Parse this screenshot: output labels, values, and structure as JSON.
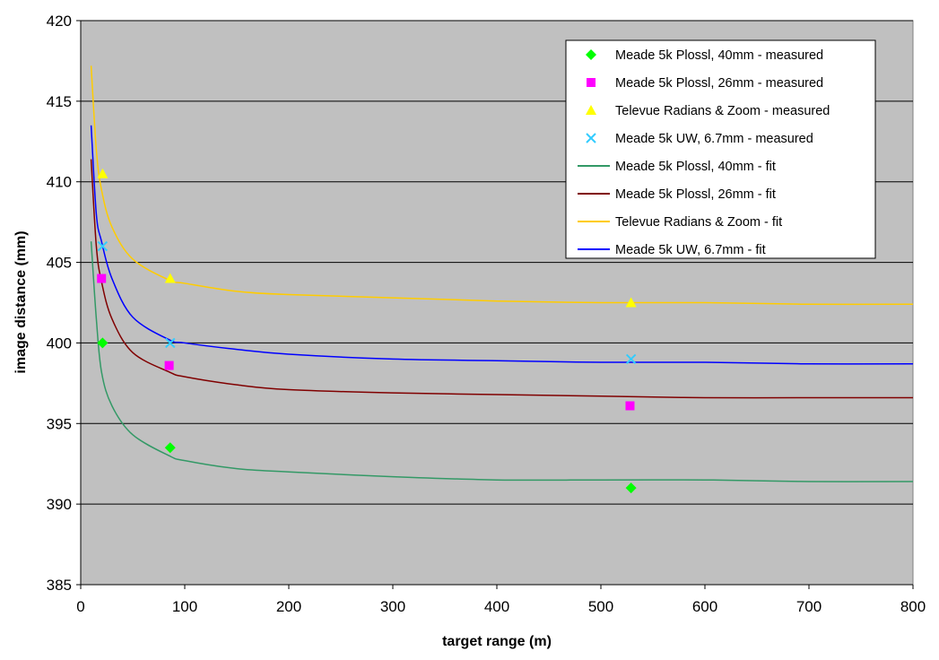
{
  "chart_data": {
    "type": "scatter",
    "title": "",
    "xlabel": "target range (m)",
    "ylabel": "image distance (mm)",
    "xlim": [
      0,
      800
    ],
    "ylim": [
      385,
      420
    ],
    "xticks": [
      "0",
      "100",
      "200",
      "300",
      "400",
      "500",
      "600",
      "700",
      "800"
    ],
    "yticks": [
      "385",
      "390",
      "395",
      "400",
      "405",
      "410",
      "415",
      "420"
    ],
    "grid": "horizontal",
    "legend_position": "top-right",
    "plot_background": "#C0C0C0",
    "series": [
      {
        "name": "Meade 5k Plossl, 40mm - measured",
        "kind": "markers",
        "marker": "diamond",
        "color": "#00FF00",
        "x": [
          21,
          86,
          529
        ],
        "y": [
          400,
          393.5,
          391
        ]
      },
      {
        "name": "Meade 5k Plossl, 26mm - measured",
        "kind": "markers",
        "marker": "square",
        "color": "#FF00FF",
        "x": [
          20,
          85,
          528
        ],
        "y": [
          404,
          398.6,
          396.1
        ]
      },
      {
        "name": "Televue Radians & Zoom - measured",
        "kind": "markers",
        "marker": "triangle",
        "color": "#FFFF00",
        "x": [
          21,
          86,
          529
        ],
        "y": [
          410.5,
          404,
          402.5
        ]
      },
      {
        "name": "Meade 5k UW, 6.7mm - measured",
        "kind": "markers",
        "marker": "x",
        "color": "#33CCFF",
        "x": [
          21,
          86,
          529
        ],
        "y": [
          406,
          400,
          399
        ]
      },
      {
        "name": "Meade 5k Plossl, 40mm - fit",
        "kind": "line",
        "color": "#339966",
        "x": [
          10,
          15,
          20,
          30,
          50,
          85,
          100,
          150,
          200,
          300,
          400,
          500,
          600,
          700,
          800
        ],
        "y": [
          406.3,
          401.5,
          398.2,
          396.1,
          394.3,
          393.0,
          392.7,
          392.2,
          392.0,
          391.7,
          391.5,
          391.5,
          391.5,
          391.4,
          391.4
        ]
      },
      {
        "name": "Meade 5k Plossl, 26mm - fit",
        "kind": "line",
        "color": "#800000",
        "x": [
          10,
          15,
          20,
          30,
          50,
          85,
          100,
          150,
          200,
          300,
          400,
          500,
          600,
          700,
          800
        ],
        "y": [
          411.4,
          406.0,
          403.8,
          401.5,
          399.4,
          398.2,
          397.9,
          397.4,
          397.1,
          396.9,
          396.8,
          396.7,
          396.6,
          396.6,
          396.6
        ]
      },
      {
        "name": "Televue Radians & Zoom - fit",
        "kind": "line",
        "color": "#FFCC00",
        "x": [
          10,
          15,
          20,
          30,
          50,
          85,
          100,
          150,
          200,
          300,
          400,
          500,
          600,
          700,
          800
        ],
        "y": [
          417.2,
          412.0,
          409.5,
          407.2,
          405.2,
          403.9,
          403.7,
          403.2,
          403.0,
          402.8,
          402.6,
          402.5,
          402.5,
          402.4,
          402.4
        ]
      },
      {
        "name": "Meade 5k UW, 6.7mm - fit",
        "kind": "line",
        "color": "#0000FF",
        "x": [
          10,
          15,
          20,
          30,
          50,
          85,
          100,
          150,
          200,
          300,
          400,
          500,
          600,
          700,
          800
        ],
        "y": [
          413.5,
          408.0,
          406.3,
          404.0,
          401.6,
          400.2,
          400.0,
          399.6,
          399.3,
          399.0,
          398.9,
          398.8,
          398.8,
          398.7,
          398.7
        ]
      }
    ]
  }
}
